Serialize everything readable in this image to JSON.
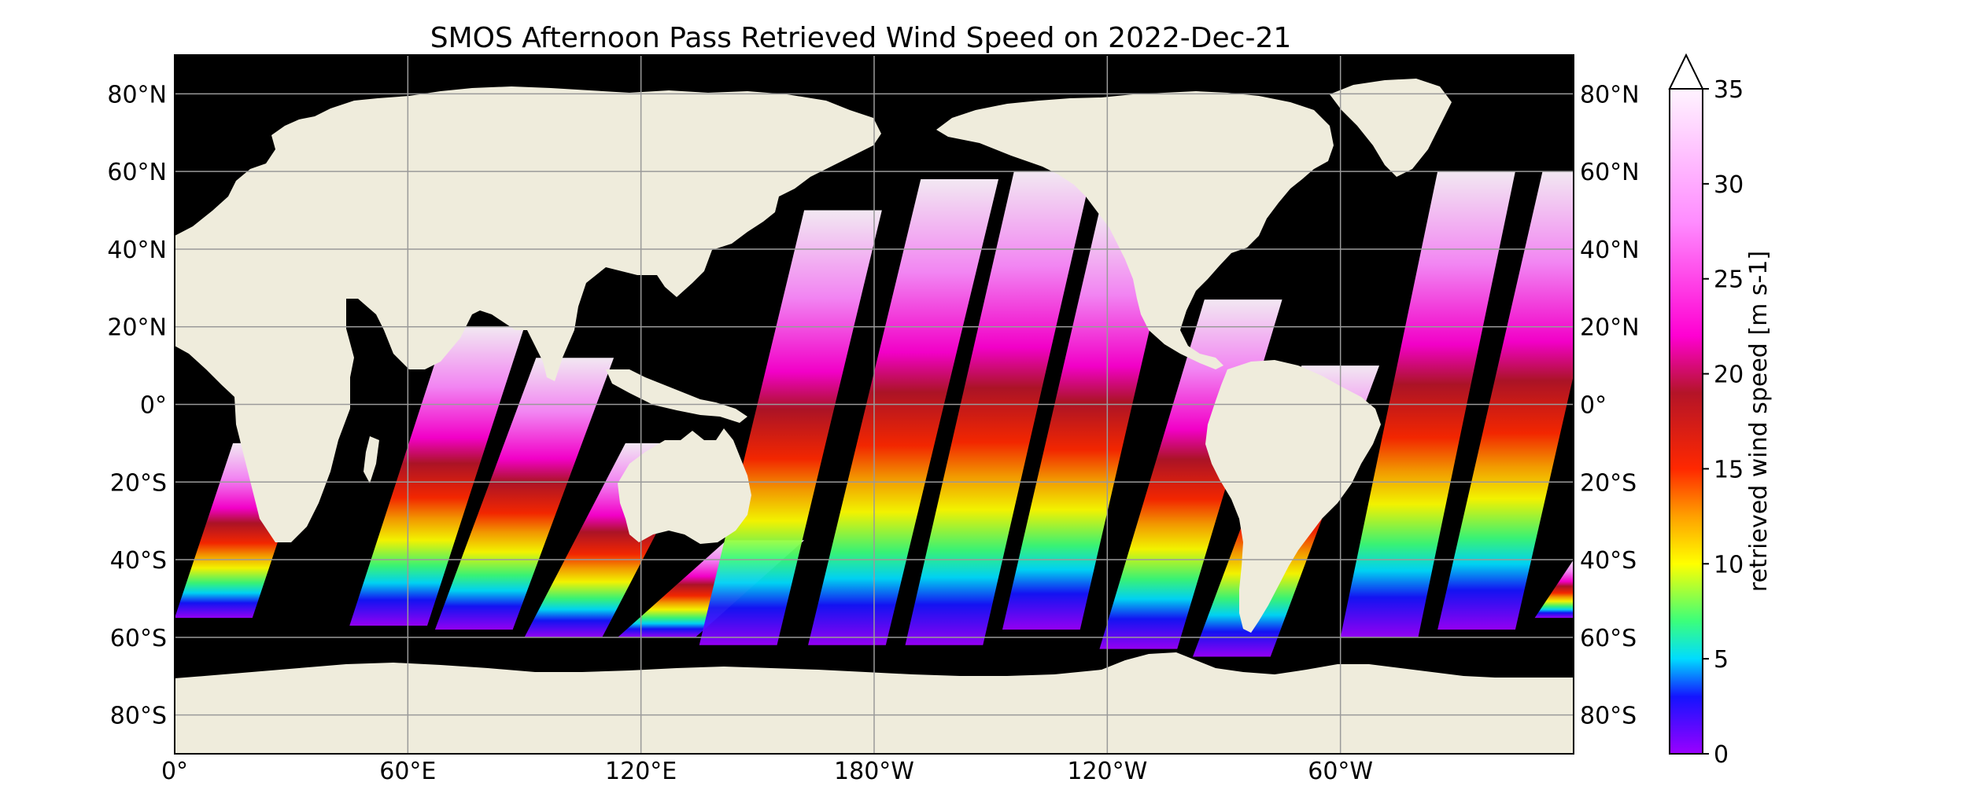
{
  "map": {
    "title": "SMOS Afternoon Pass Retrieved Wind Speed on 2022-Dec-21",
    "projection": "PlateCarree",
    "center_longitude": 180,
    "lat_range": [
      -90,
      90
    ],
    "lon_range": [
      0,
      360
    ],
    "lat_ticks": [
      {
        "value": 80,
        "label": "80°N"
      },
      {
        "value": 60,
        "label": "60°N"
      },
      {
        "value": 40,
        "label": "40°N"
      },
      {
        "value": 20,
        "label": "20°N"
      },
      {
        "value": 0,
        "label": "0°"
      },
      {
        "value": -20,
        "label": "20°S"
      },
      {
        "value": -40,
        "label": "40°S"
      },
      {
        "value": -60,
        "label": "60°S"
      },
      {
        "value": -80,
        "label": "80°S"
      }
    ],
    "lon_ticks": [
      {
        "value": 0,
        "label": "0°"
      },
      {
        "value": 60,
        "label": "60°E"
      },
      {
        "value": 120,
        "label": "120°E"
      },
      {
        "value": 180,
        "label": "180°W"
      },
      {
        "value": 240,
        "label": "120°W"
      },
      {
        "value": 300,
        "label": "60°W"
      }
    ],
    "gridlines": true,
    "colors": {
      "ocean_nodata": "#000000",
      "land": "#efecdc",
      "grid": "#9a9a9a"
    },
    "swaths": [
      {
        "lon_bottom": 0,
        "lon_top": 15,
        "lat_bottom": -55,
        "lat_top": -10
      },
      {
        "lon_bottom": 45,
        "lon_top": 70,
        "lat_bottom": -57,
        "lat_top": 20
      },
      {
        "lon_bottom": 67,
        "lon_top": 93,
        "lat_bottom": -58,
        "lat_top": 12
      },
      {
        "lon_bottom": 90,
        "lon_top": 116,
        "lat_bottom": -60,
        "lat_top": -10
      },
      {
        "lon_bottom": 114,
        "lon_top": 142,
        "lat_bottom": -60,
        "lat_top": -35
      },
      {
        "lon_bottom": 135,
        "lon_top": 162,
        "lat_bottom": -62,
        "lat_top": 50
      },
      {
        "lon_bottom": 163,
        "lon_top": 192,
        "lat_bottom": -62,
        "lat_top": 58
      },
      {
        "lon_bottom": 188,
        "lon_top": 216,
        "lat_bottom": -62,
        "lat_top": 60
      },
      {
        "lon_bottom": 213,
        "lon_top": 238,
        "lat_bottom": -58,
        "lat_top": 50
      },
      {
        "lon_bottom": 238,
        "lon_top": 265,
        "lat_bottom": -63,
        "lat_top": 27
      },
      {
        "lon_bottom": 262,
        "lon_top": 290,
        "lat_bottom": -65,
        "lat_top": 10
      },
      {
        "lon_bottom": 300,
        "lon_top": 325,
        "lat_bottom": -60,
        "lat_top": 60
      },
      {
        "lon_bottom": 325,
        "lon_top": 352,
        "lat_bottom": -58,
        "lat_top": 60
      },
      {
        "lon_bottom": 350,
        "lon_top": 360,
        "lat_bottom": -55,
        "lat_top": -40
      }
    ]
  },
  "colorbar": {
    "label": "retrieved wind speed [m s-1]",
    "min": 0,
    "max": 35,
    "extend": "max",
    "ticks": [
      {
        "value": 0,
        "label": "0"
      },
      {
        "value": 5,
        "label": "5"
      },
      {
        "value": 10,
        "label": "10"
      },
      {
        "value": 15,
        "label": "15"
      },
      {
        "value": 20,
        "label": "20"
      },
      {
        "value": 25,
        "label": "25"
      },
      {
        "value": 30,
        "label": "30"
      },
      {
        "value": 35,
        "label": "35"
      }
    ],
    "stops": [
      {
        "value": 0,
        "color": "#9b00ff"
      },
      {
        "value": 3,
        "color": "#1414ff"
      },
      {
        "value": 5,
        "color": "#00dcff"
      },
      {
        "value": 7,
        "color": "#3cff7a"
      },
      {
        "value": 10,
        "color": "#ffff00"
      },
      {
        "value": 12.5,
        "color": "#ffa000"
      },
      {
        "value": 15,
        "color": "#ff2800"
      },
      {
        "value": 19,
        "color": "#b41428"
      },
      {
        "value": 22,
        "color": "#ff00d2"
      },
      {
        "value": 28,
        "color": "#ff8cff"
      },
      {
        "value": 35,
        "color": "#fff4ff"
      }
    ]
  }
}
